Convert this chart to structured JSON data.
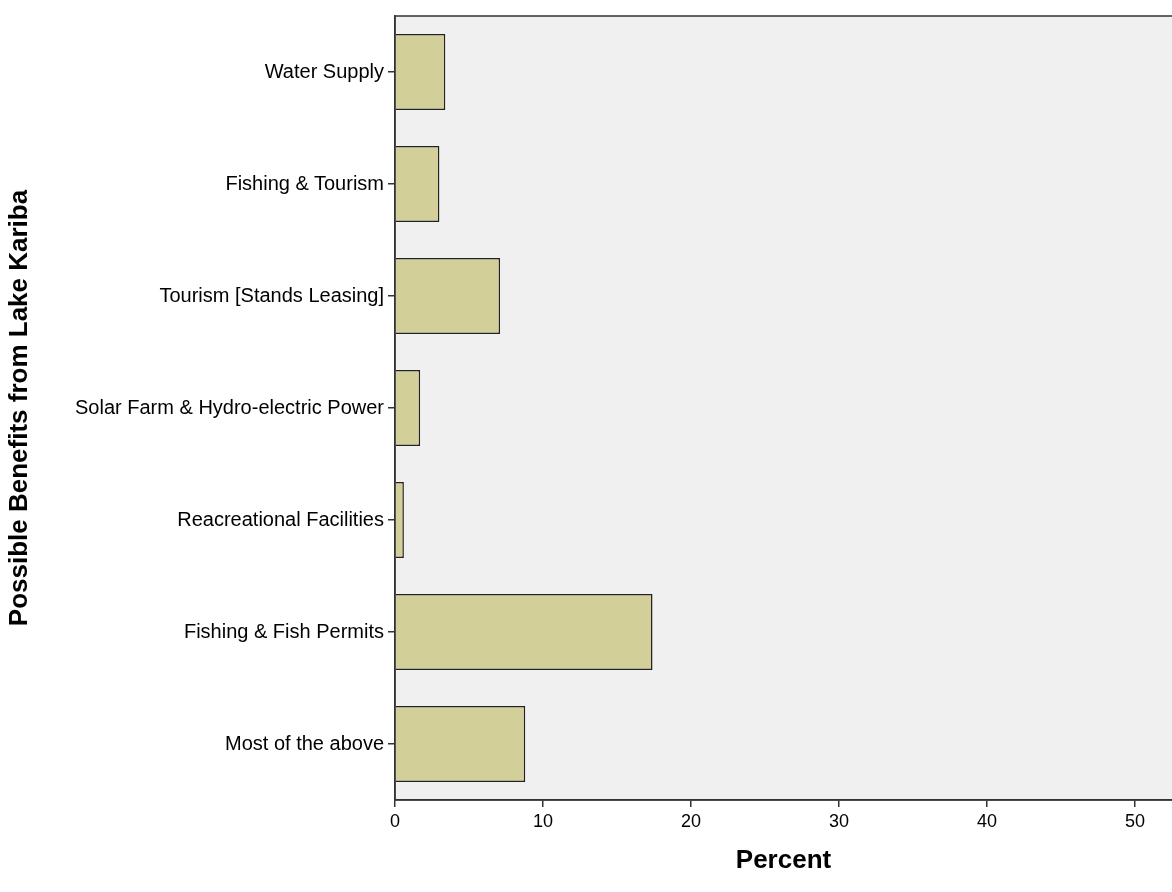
{
  "chart_data": {
    "type": "bar",
    "orientation": "horizontal",
    "xlabel": "Percent",
    "ylabel": "Possible Benefits from Lake Kariba",
    "categories": [
      "Water Supply",
      "Fishing & Tourism",
      "Tourism [Stands Leasing]",
      "Solar Farm & Hydro-electric Power",
      "Reacreational Facilities",
      "Fishing & Fish Permits",
      "Most of the above"
    ],
    "values": [
      3.4,
      3.0,
      7.1,
      1.7,
      0.6,
      17.4,
      8.8
    ],
    "color": "#d3cf98",
    "xlim": [
      0,
      52.5
    ],
    "xticks": [
      0,
      10,
      20,
      30,
      40,
      50
    ],
    "grid": false,
    "legend": false
  }
}
